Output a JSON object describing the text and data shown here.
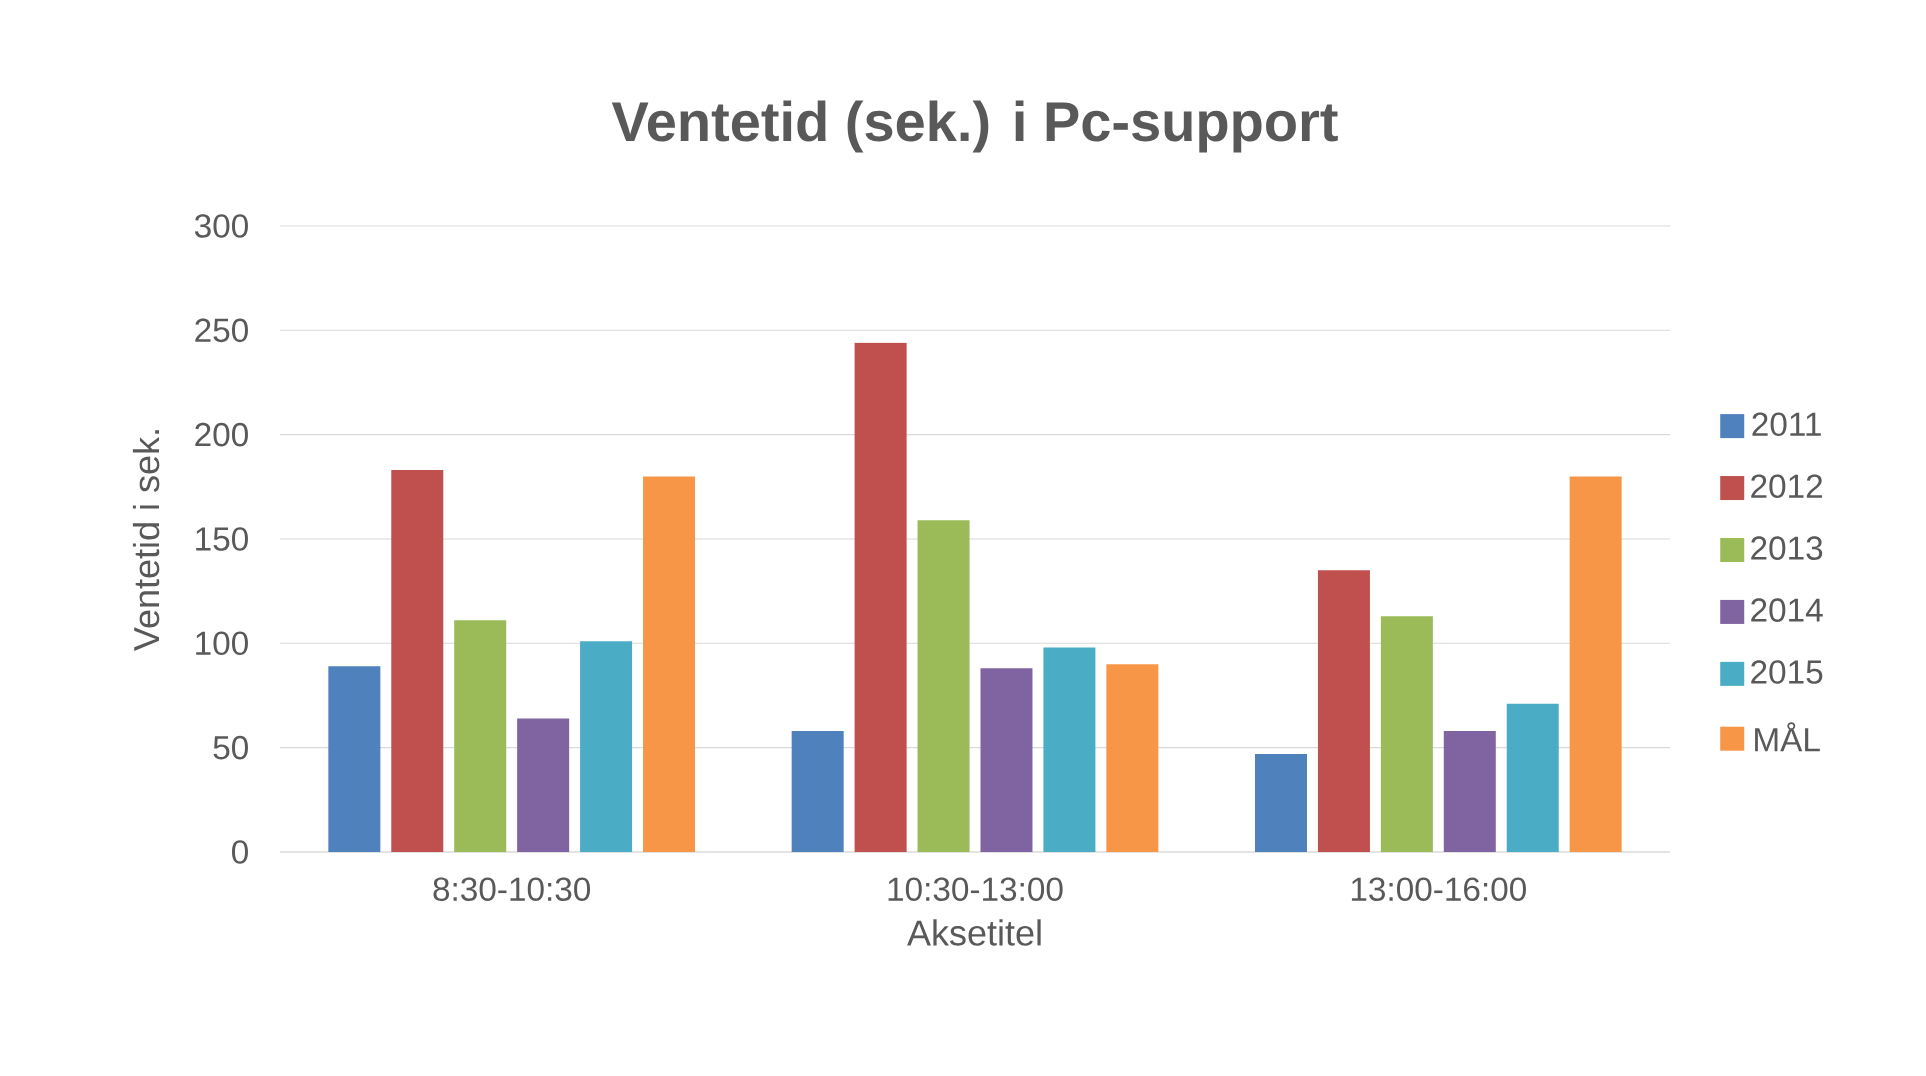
{
  "chart_data": {
    "type": "bar",
    "title": "Ventetid (sek.) i Pc-support",
    "xlabel": "Aksetitel",
    "ylabel": "Ventetid i sek.",
    "categories": [
      "8:30-10:30",
      "10:30-13:00",
      "13:00-16:00"
    ],
    "series": [
      {
        "name": "2011",
        "color": "#4f81bd",
        "values": [
          89,
          58,
          47
        ]
      },
      {
        "name": "2012",
        "color": "#c0504d",
        "values": [
          183,
          244,
          135
        ]
      },
      {
        "name": "2013",
        "color": "#9bbb59",
        "values": [
          111,
          159,
          113
        ]
      },
      {
        "name": "2014",
        "color": "#8064a2",
        "values": [
          64,
          88,
          58
        ]
      },
      {
        "name": "2015",
        "color": "#4bacc6",
        "values": [
          101,
          98,
          71
        ]
      },
      {
        "name": "MÅL",
        "color": "#f79646",
        "values": [
          180,
          90,
          180
        ]
      }
    ],
    "ylim": [
      0,
      300
    ],
    "yticks": [
      0,
      50,
      100,
      150,
      200,
      250,
      300
    ],
    "grid": "y",
    "legend": "right"
  }
}
